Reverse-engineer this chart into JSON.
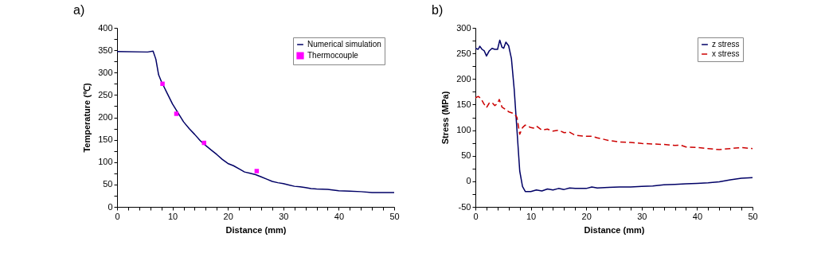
{
  "chart_data": [
    {
      "type": "line",
      "title": "a)",
      "xlabel": "Distance (mm)",
      "ylabel": "Temperature (℃)",
      "xlim": [
        0,
        50
      ],
      "ylim": [
        0,
        400
      ],
      "xticks": [
        0,
        {
          "value": 2,
          "label": null
        },
        {
          "value": 4,
          "label": null
        },
        {
          "value": 6,
          "label": null
        },
        {
          "value": 8,
          "label": null
        },
        10,
        {
          "value": 12,
          "label": null
        },
        {
          "value": 14,
          "label": null
        },
        {
          "value": 16,
          "label": null
        },
        {
          "value": 18,
          "label": null
        },
        20,
        {
          "value": 22,
          "label": null
        },
        {
          "value": 24,
          "label": null
        },
        {
          "value": 26,
          "label": null
        },
        {
          "value": 28,
          "label": null
        },
        30,
        {
          "value": 32,
          "label": null
        },
        {
          "value": 34,
          "label": null
        },
        {
          "value": 36,
          "label": null
        },
        {
          "value": 38,
          "label": null
        },
        40,
        {
          "value": 42,
          "label": null
        },
        {
          "value": 44,
          "label": null
        },
        {
          "value": 46,
          "label": null
        },
        {
          "value": 48,
          "label": null
        },
        50
      ],
      "yticks": [
        0,
        {
          "value": 25,
          "label": null
        },
        50,
        {
          "value": 75,
          "label": null
        },
        100,
        {
          "value": 125,
          "label": null
        },
        150,
        {
          "value": 175,
          "label": null
        },
        200,
        {
          "value": 225,
          "label": null
        },
        250,
        {
          "value": 275,
          "label": null
        },
        300,
        {
          "value": 325,
          "label": null
        },
        350,
        {
          "value": 375,
          "label": null
        },
        400
      ],
      "legend": "top right",
      "series": [
        {
          "name": "Numerical simulation",
          "type": "line",
          "color": "#000066",
          "line_style": "solid",
          "x": [
            0,
            5.5,
            6.5,
            7,
            7.5,
            8,
            9,
            10,
            11,
            12,
            13,
            14,
            15,
            16,
            17,
            18,
            19,
            20,
            21,
            22,
            23,
            24,
            25,
            26,
            27,
            28,
            29,
            30,
            31,
            32,
            33,
            34,
            35,
            36,
            38,
            40,
            42,
            44,
            46,
            48,
            50
          ],
          "values": [
            347,
            346,
            348,
            330,
            295,
            280,
            255,
            230,
            210,
            190,
            175,
            162,
            148,
            137,
            127,
            117,
            106,
            97,
            92,
            85,
            78,
            75,
            72,
            67,
            62,
            57,
            54,
            52,
            49,
            46,
            45,
            43,
            41,
            40,
            39,
            36,
            35,
            34,
            32,
            32,
            32
          ]
        },
        {
          "name": "Thermocouple",
          "type": "scatter",
          "marker": "square",
          "color": "#ff00ff",
          "x": [
            8.2,
            10.7,
            15.7,
            25.2
          ],
          "values": [
            275,
            208,
            143,
            80
          ]
        }
      ]
    },
    {
      "type": "line",
      "title": "b)",
      "xlabel": "Distance (mm)",
      "ylabel": "Stress (MPa)",
      "xlim": [
        0,
        50
      ],
      "ylim": [
        -50,
        300
      ],
      "xticks": [
        0,
        {
          "value": 2,
          "label": null
        },
        {
          "value": 4,
          "label": null
        },
        {
          "value": 6,
          "label": null
        },
        {
          "value": 8,
          "label": null
        },
        10,
        {
          "value": 12,
          "label": null
        },
        {
          "value": 14,
          "label": null
        },
        {
          "value": 16,
          "label": null
        },
        {
          "value": 18,
          "label": null
        },
        20,
        {
          "value": 22,
          "label": null
        },
        {
          "value": 24,
          "label": null
        },
        {
          "value": 26,
          "label": null
        },
        {
          "value": 28,
          "label": null
        },
        30,
        {
          "value": 32,
          "label": null
        },
        {
          "value": 34,
          "label": null
        },
        {
          "value": 36,
          "label": null
        },
        {
          "value": 38,
          "label": null
        },
        40,
        {
          "value": 42,
          "label": null
        },
        {
          "value": 44,
          "label": null
        },
        {
          "value": 46,
          "label": null
        },
        {
          "value": 48,
          "label": null
        },
        50
      ],
      "yticks": [
        -50,
        {
          "value": -25,
          "label": null
        },
        0,
        {
          "value": 25,
          "label": null
        },
        50,
        {
          "value": 75,
          "label": null
        },
        100,
        {
          "value": 125,
          "label": null
        },
        150,
        {
          "value": 175,
          "label": null
        },
        200,
        {
          "value": 225,
          "label": null
        },
        250,
        {
          "value": 275,
          "label": null
        },
        300
      ],
      "legend": "top right",
      "series": [
        {
          "name": "z stress",
          "type": "line",
          "color": "#000066",
          "line_style": "solid",
          "x": [
            0,
            0.5,
            0.8,
            1.2,
            1.6,
            2,
            2.5,
            3,
            3.5,
            4,
            4.4,
            4.8,
            5.1,
            5.5,
            6,
            6.5,
            7,
            7.5,
            8,
            8.5,
            9,
            10,
            11,
            12,
            13,
            14,
            15,
            16,
            17,
            18,
            20,
            21,
            22,
            24,
            26,
            28,
            30,
            32,
            34,
            36,
            38,
            40,
            42,
            44,
            46,
            48,
            50
          ],
          "values": [
            260,
            258,
            264,
            258,
            255,
            245,
            255,
            260,
            258,
            258,
            276,
            262,
            260,
            272,
            265,
            240,
            180,
            100,
            20,
            -10,
            -20,
            -20,
            -17,
            -19,
            -15,
            -17,
            -14,
            -16,
            -13,
            -14,
            -14,
            -11,
            -13,
            -12,
            -11,
            -11,
            -10,
            -9,
            -7,
            -6,
            -5,
            -4,
            -3,
            -1,
            3,
            6,
            7
          ]
        },
        {
          "name": "x stress",
          "type": "line",
          "color": "#cc0000",
          "line_style": "dashed",
          "x": [
            0,
            0.5,
            1,
            1.5,
            2,
            2.5,
            3,
            3.5,
            4,
            4.3,
            4.8,
            5.5,
            6,
            7,
            7.5,
            8,
            8.5,
            9,
            10,
            10.5,
            11,
            12,
            13,
            14,
            15,
            16,
            17,
            18,
            20,
            21,
            22,
            24,
            26,
            28,
            30,
            32,
            34,
            36,
            37,
            38,
            40,
            42,
            44,
            45,
            47,
            48,
            50
          ],
          "values": [
            163,
            166,
            162,
            152,
            144,
            153,
            154,
            148,
            152,
            160,
            145,
            140,
            136,
            132,
            125,
            92,
            105,
            110,
            105,
            104,
            108,
            100,
            102,
            98,
            100,
            95,
            96,
            90,
            88,
            88,
            85,
            80,
            77,
            76,
            74,
            73,
            72,
            70,
            71,
            67,
            66,
            64,
            62,
            63,
            65,
            66,
            64
          ]
        }
      ]
    }
  ]
}
